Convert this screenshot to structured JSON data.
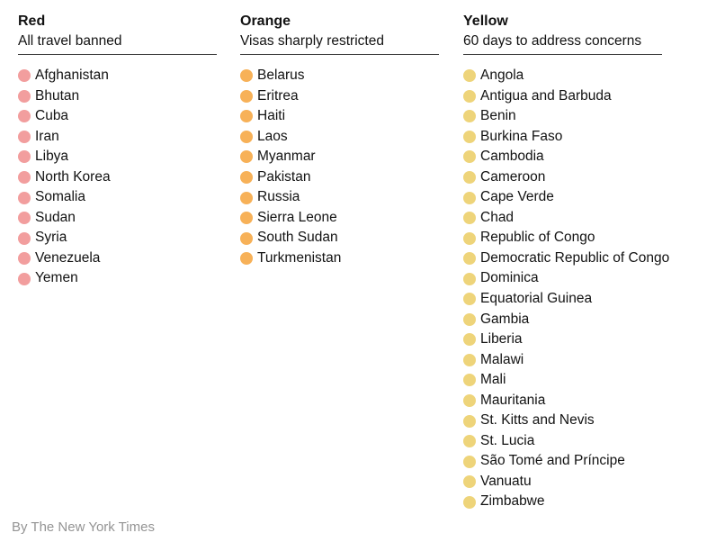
{
  "credit": "By The New York Times",
  "colors": {
    "text": "#121212",
    "rule": "#3a3a3a",
    "credit": "#949494",
    "background": "#ffffff",
    "red_dot": "#f29e9e",
    "orange_dot": "#f7b158",
    "yellow_dot": "#eed47a"
  },
  "chart_data": {
    "type": "table",
    "title": "",
    "legend_position": "none",
    "groups": [
      {
        "name": "Red",
        "description": "All travel banned",
        "color": "#f29e9e",
        "count": 11,
        "countries": [
          "Afghanistan",
          "Bhutan",
          "Cuba",
          "Iran",
          "Libya",
          "North Korea",
          "Somalia",
          "Sudan",
          "Syria",
          "Venezuela",
          "Yemen"
        ]
      },
      {
        "name": "Orange",
        "description": "Visas sharply restricted",
        "color": "#f7b158",
        "count": 10,
        "countries": [
          "Belarus",
          "Eritrea",
          "Haiti",
          "Laos",
          "Myanmar",
          "Pakistan",
          "Russia",
          "Sierra Leone",
          "South Sudan",
          "Turkmenistan"
        ]
      },
      {
        "name": "Yellow",
        "description": "60 days to address concerns",
        "color": "#eed47a",
        "count": 22,
        "countries": [
          "Angola",
          "Antigua and Barbuda",
          "Benin",
          "Burkina Faso",
          "Cambodia",
          "Cameroon",
          "Cape Verde",
          "Chad",
          "Republic of Congo",
          "Democratic Republic of Congo",
          "Dominica",
          "Equatorial Guinea",
          "Gambia",
          "Liberia",
          "Malawi",
          "Mali",
          "Mauritania",
          "St. Kitts and Nevis",
          "St. Lucia",
          "São Tomé and Príncipe",
          "Vanuatu",
          "Zimbabwe"
        ]
      }
    ]
  }
}
